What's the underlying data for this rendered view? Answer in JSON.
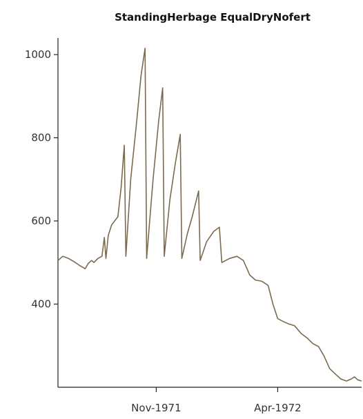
{
  "chart_data": {
    "type": "line",
    "title": "StandingHerbage EqualDryNofert",
    "xlabel": "",
    "ylabel": "",
    "x_ticks": [
      "Nov-1971",
      "Apr-1972"
    ],
    "y_ticks": [
      400,
      600,
      800,
      1000
    ],
    "ylim": [
      200,
      1040
    ],
    "xlim": [
      "1971-07-01",
      "1972-07-15"
    ],
    "grid": false,
    "series": [
      {
        "color": "#7a6a4f",
        "points": [
          [
            "1971-07-01",
            505
          ],
          [
            "1971-07-07",
            515
          ],
          [
            "1971-07-14",
            510
          ],
          [
            "1971-07-21",
            502
          ],
          [
            "1971-07-28",
            493
          ],
          [
            "1971-08-04",
            485
          ],
          [
            "1971-08-08",
            498
          ],
          [
            "1971-08-12",
            505
          ],
          [
            "1971-08-15",
            500
          ],
          [
            "1971-08-20",
            510
          ],
          [
            "1971-08-25",
            515
          ],
          [
            "1971-08-28",
            560
          ],
          [
            "1971-08-30",
            510
          ],
          [
            "1971-09-02",
            565
          ],
          [
            "1971-09-06",
            590
          ],
          [
            "1971-09-10",
            600
          ],
          [
            "1971-09-14",
            610
          ],
          [
            "1971-09-18",
            680
          ],
          [
            "1971-09-22",
            782
          ],
          [
            "1971-09-24",
            515
          ],
          [
            "1971-09-30",
            700
          ],
          [
            "1971-10-07",
            830
          ],
          [
            "1971-10-13",
            950
          ],
          [
            "1971-10-18",
            1015
          ],
          [
            "1971-10-20",
            510
          ],
          [
            "1971-10-28",
            700
          ],
          [
            "1971-11-04",
            840
          ],
          [
            "1971-11-09",
            920
          ],
          [
            "1971-11-11",
            515
          ],
          [
            "1971-11-18",
            650
          ],
          [
            "1971-11-25",
            740
          ],
          [
            "1971-12-01",
            808
          ],
          [
            "1971-12-03",
            510
          ],
          [
            "1971-12-10",
            570
          ],
          [
            "1971-12-16",
            610
          ],
          [
            "1971-12-24",
            672
          ],
          [
            "1971-12-26",
            505
          ],
          [
            "1972-01-03",
            550
          ],
          [
            "1972-01-12",
            575
          ],
          [
            "1972-01-19",
            585
          ],
          [
            "1972-01-22",
            500
          ],
          [
            "1972-02-01",
            510
          ],
          [
            "1972-02-10",
            515
          ],
          [
            "1972-02-18",
            505
          ],
          [
            "1972-02-26",
            470
          ],
          [
            "1972-03-04",
            458
          ],
          [
            "1972-03-12",
            455
          ],
          [
            "1972-03-20",
            445
          ],
          [
            "1972-03-26",
            400
          ],
          [
            "1972-04-01",
            365
          ],
          [
            "1972-04-08",
            358
          ],
          [
            "1972-04-15",
            352
          ],
          [
            "1972-04-22",
            348
          ],
          [
            "1972-04-30",
            330
          ],
          [
            "1972-05-08",
            318
          ],
          [
            "1972-05-15",
            305
          ],
          [
            "1972-05-22",
            298
          ],
          [
            "1972-05-29",
            275
          ],
          [
            "1972-06-05",
            245
          ],
          [
            "1972-06-12",
            232
          ],
          [
            "1972-06-19",
            220
          ],
          [
            "1972-06-26",
            215
          ],
          [
            "1972-07-02",
            220
          ],
          [
            "1972-07-06",
            225
          ],
          [
            "1972-07-10",
            218
          ],
          [
            "1972-07-15",
            215
          ]
        ]
      }
    ]
  }
}
